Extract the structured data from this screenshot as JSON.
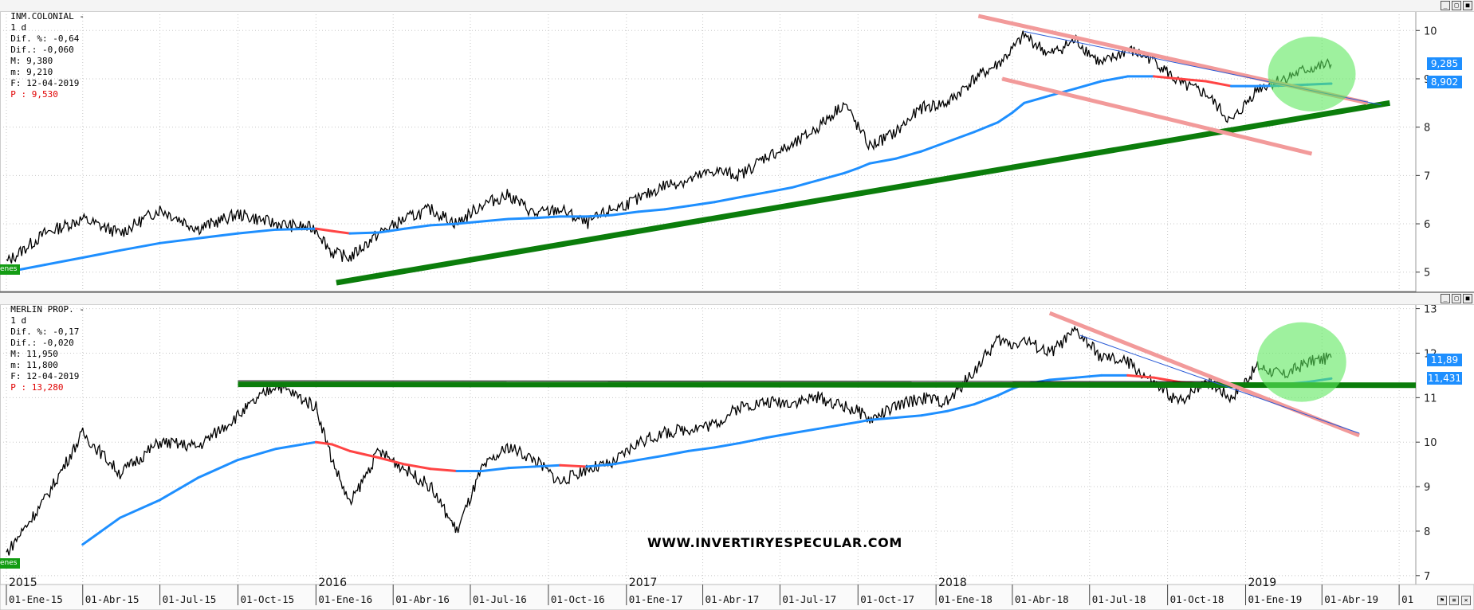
{
  "panels": [
    {
      "header": {
        "name": "INM.COLONIAL -",
        "interval": "1 d",
        "dif_pct": "Dif. %: -0,64",
        "dif": "Dif.: -0,060",
        "max": "M: 9,380",
        "min": "m: 9,210",
        "date": "F: 12-04-2019",
        "price": "P : 9,530"
      },
      "tag": "enes",
      "price_boxes": [
        "9,285",
        "8,902"
      ],
      "y_ticks": [
        "10",
        "9",
        "8",
        "7",
        "6",
        "5"
      ]
    },
    {
      "header": {
        "name": "MERLIN PROP. -",
        "interval": "1 d",
        "dif_pct": "Dif. %: -0,17",
        "dif": "Dif.: -0,020",
        "max": "M: 11,950",
        "min": "m: 11,800",
        "date": "F: 12-04-2019",
        "price": "P : 13,280"
      },
      "tag": "enes",
      "price_boxes": [
        "11,89",
        "11,431"
      ],
      "y_ticks": [
        "13",
        "12",
        "11",
        "10",
        "9",
        "8",
        "7"
      ]
    }
  ],
  "watermark": "WWW.INVERTIRYESPECULAR.COM",
  "window_buttons": [
    "_",
    "□",
    "■"
  ],
  "colors": {
    "price": "#000000",
    "ma_up": "#1e8fff",
    "ma_down": "#ff4444",
    "support": "#0b7d0b",
    "channel": "#f29a9a",
    "highlight": "#5ee85e",
    "grid": "#c8c8c8"
  },
  "chart_data": [
    {
      "type": "line",
      "title": "INM.COLONIAL",
      "x_dates": [
        "2015-01-01",
        "2015-02-15",
        "2015-04-01",
        "2015-05-15",
        "2015-07-01",
        "2015-08-15",
        "2015-10-01",
        "2015-11-15",
        "2016-01-01",
        "2016-01-20",
        "2016-02-10",
        "2016-03-15",
        "2016-04-15",
        "2016-05-15",
        "2016-06-15",
        "2016-07-15",
        "2016-08-15",
        "2016-09-15",
        "2016-10-15",
        "2016-11-15",
        "2016-12-15",
        "2017-01-15",
        "2017-02-15",
        "2017-03-15",
        "2017-04-15",
        "2017-05-15",
        "2017-06-15",
        "2017-07-15",
        "2017-08-15",
        "2017-09-15",
        "2017-10-01",
        "2017-10-15",
        "2017-11-15",
        "2017-12-15",
        "2018-01-15",
        "2018-02-15",
        "2018-03-15",
        "2018-04-01",
        "2018-04-15",
        "2018-05-15",
        "2018-06-15",
        "2018-07-15",
        "2018-08-15",
        "2018-09-15",
        "2018-10-15",
        "2018-11-15",
        "2018-12-15",
        "2019-01-15",
        "2019-02-15",
        "2019-03-15",
        "2019-04-12"
      ],
      "series": [
        {
          "values": [
            5.2,
            5.8,
            6.1,
            5.8,
            6.3,
            5.9,
            6.2,
            6.0,
            5.9,
            5.4,
            5.3,
            5.8,
            6.1,
            6.3,
            6.0,
            6.4,
            6.6,
            6.2,
            6.3,
            6.0,
            6.3,
            6.5,
            6.8,
            6.9,
            7.1,
            7.0,
            7.4,
            7.6,
            8.0,
            8.5,
            8.0,
            7.6,
            7.9,
            8.4,
            8.5,
            9.0,
            9.3,
            9.6,
            9.9,
            9.5,
            9.8,
            9.3,
            9.6,
            9.4,
            8.9,
            8.7,
            8.1,
            8.8,
            9.0,
            9.2,
            9.3
          ]
        },
        {
          "values": [
            5.0,
            5.15,
            5.3,
            5.45,
            5.6,
            5.7,
            5.8,
            5.88,
            5.9,
            5.85,
            5.8,
            5.82,
            5.9,
            5.97,
            6.0,
            6.05,
            6.1,
            6.12,
            6.15,
            6.15,
            6.18,
            6.25,
            6.3,
            6.37,
            6.45,
            6.55,
            6.65,
            6.75,
            6.9,
            7.05,
            7.15,
            7.25,
            7.35,
            7.5,
            7.7,
            7.9,
            8.1,
            8.3,
            8.5,
            8.65,
            8.8,
            8.95,
            9.05,
            9.05,
            9.0,
            8.95,
            8.85,
            8.85,
            8.86,
            8.88,
            8.9
          ]
        }
      ],
      "ylim": [
        4.6,
        10.4
      ]
    },
    {
      "type": "line",
      "title": "MERLIN PROP.",
      "x_dates": [
        "2015-01-01",
        "2015-02-15",
        "2015-04-01",
        "2015-05-15",
        "2015-07-01",
        "2015-08-15",
        "2015-10-01",
        "2015-11-15",
        "2016-01-01",
        "2016-01-20",
        "2016-02-10",
        "2016-03-15",
        "2016-04-15",
        "2016-05-15",
        "2016-06-15",
        "2016-07-15",
        "2016-08-15",
        "2016-09-15",
        "2016-10-15",
        "2016-11-15",
        "2016-12-15",
        "2017-01-15",
        "2017-02-15",
        "2017-03-15",
        "2017-04-15",
        "2017-05-15",
        "2017-06-15",
        "2017-07-15",
        "2017-08-15",
        "2017-09-15",
        "2017-10-01",
        "2017-10-15",
        "2017-11-15",
        "2017-12-15",
        "2018-01-15",
        "2018-02-15",
        "2018-03-15",
        "2018-04-01",
        "2018-04-15",
        "2018-05-15",
        "2018-06-15",
        "2018-07-15",
        "2018-08-15",
        "2018-09-15",
        "2018-10-15",
        "2018-11-15",
        "2018-12-15",
        "2019-01-15",
        "2019-02-15",
        "2019-03-15",
        "2019-04-12"
      ],
      "series": [
        {
          "values": [
            7.5,
            8.7,
            10.2,
            9.3,
            10.0,
            9.9,
            10.6,
            11.3,
            10.8,
            9.6,
            8.6,
            9.8,
            9.4,
            9.0,
            8.0,
            9.4,
            9.9,
            9.6,
            9.1,
            9.4,
            9.5,
            10.0,
            10.2,
            10.3,
            10.4,
            10.8,
            10.9,
            10.9,
            11.0,
            10.8,
            10.7,
            10.5,
            10.8,
            11.0,
            10.9,
            11.6,
            12.3,
            12.2,
            12.3,
            12.0,
            12.5,
            11.9,
            11.8,
            11.3,
            10.9,
            11.4,
            11.0,
            11.7,
            11.5,
            11.8,
            11.9
          ]
        },
        {
          "values": [
            null,
            null,
            7.7,
            8.3,
            8.7,
            9.2,
            9.6,
            9.85,
            10.0,
            9.95,
            9.8,
            9.65,
            9.5,
            9.4,
            9.35,
            9.35,
            9.42,
            9.45,
            9.48,
            9.45,
            9.5,
            9.6,
            9.7,
            9.8,
            9.88,
            9.98,
            10.1,
            10.2,
            10.3,
            10.4,
            10.45,
            10.5,
            10.55,
            10.6,
            10.7,
            10.85,
            11.05,
            11.2,
            11.3,
            11.4,
            11.45,
            11.5,
            11.5,
            11.45,
            11.35,
            11.3,
            11.25,
            11.25,
            11.3,
            11.35,
            11.43
          ]
        }
      ],
      "ylim": [
        6.8,
        13.1
      ]
    }
  ],
  "x_axis": {
    "years": [
      "2015",
      "2016",
      "2017",
      "2018",
      "2019"
    ],
    "months": [
      "01-Ene-15",
      "01-Abr-15",
      "01-Jul-15",
      "01-Oct-15",
      "01-Ene-16",
      "01-Abr-16",
      "01-Jul-16",
      "01-Oct-16",
      "01-Ene-17",
      "01-Abr-17",
      "01-Jul-17",
      "01-Oct-17",
      "01-Ene-18",
      "01-Abr-18",
      "01-Jul-18",
      "01-Oct-18",
      "01-Ene-19",
      "01-Abr-19",
      "01"
    ]
  }
}
